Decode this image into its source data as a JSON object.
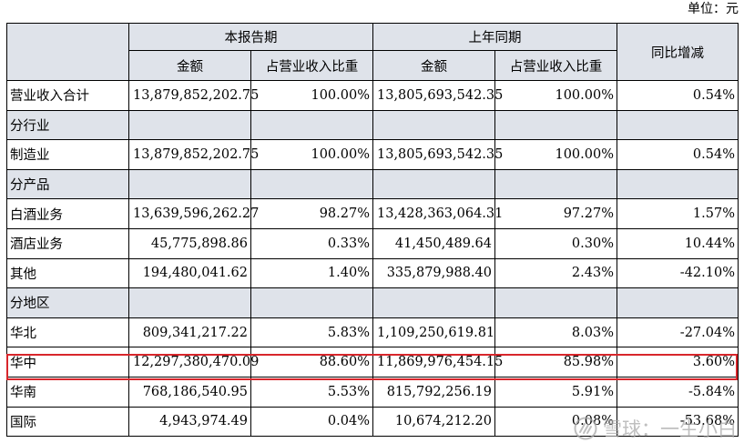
{
  "unit_label": "单位：元",
  "headers": {
    "item": "",
    "current_period": "本报告期",
    "prior_period": "上年同期",
    "yoy": "同比增减",
    "amount": "金额",
    "share": "占营业收入比重"
  },
  "total": {
    "label": "营业收入合计",
    "cur_amount": "13,879,852,202.75",
    "cur_share": "100.00%",
    "prev_amount": "13,805,693,542.35",
    "prev_share": "100.00%",
    "yoy": "0.54%"
  },
  "sections": [
    {
      "title": "分行业",
      "rows": [
        {
          "label": "制造业",
          "cur_amount": "13,879,852,202.75",
          "cur_share": "100.00%",
          "prev_amount": "13,805,693,542.35",
          "prev_share": "100.00%",
          "yoy": "0.54%"
        }
      ]
    },
    {
      "title": "分产品",
      "rows": [
        {
          "label": "白酒业务",
          "cur_amount": "13,639,596,262.27",
          "cur_share": "98.27%",
          "prev_amount": "13,428,363,064.31",
          "prev_share": "97.27%",
          "yoy": "1.57%"
        },
        {
          "label": "酒店业务",
          "cur_amount": "45,775,898.86",
          "cur_share": "0.33%",
          "prev_amount": "41,450,489.64",
          "prev_share": "0.30%",
          "yoy": "10.44%"
        },
        {
          "label": "其他",
          "cur_amount": "194,480,041.62",
          "cur_share": "1.40%",
          "prev_amount": "335,879,988.40",
          "prev_share": "2.43%",
          "yoy": "-42.10%"
        }
      ]
    },
    {
      "title": "分地区",
      "rows": [
        {
          "label": "华北",
          "cur_amount": "809,341,217.22",
          "cur_share": "5.83%",
          "prev_amount": "1,109,250,619.81",
          "prev_share": "8.03%",
          "yoy": "-27.04%"
        },
        {
          "label": "华中",
          "cur_amount": "12,297,380,470.09",
          "cur_share": "88.60%",
          "prev_amount": "11,869,976,454.15",
          "prev_share": "85.98%",
          "yoy": "3.60%"
        },
        {
          "label": "华南",
          "cur_amount": "768,186,540.95",
          "cur_share": "5.53%",
          "prev_amount": "815,792,256.19",
          "prev_share": "5.91%",
          "yoy": "-5.84%"
        },
        {
          "label": "国际",
          "cur_amount": "4,943,974.49",
          "cur_share": "0.04%",
          "prev_amount": "10,674,212.20",
          "prev_share": "0.08%",
          "yoy": "-53.68%"
        }
      ]
    }
  ],
  "watermark": {
    "text": "雪球：一生小白",
    "icon": "snowball-logo-icon"
  },
  "highlight_color": "#d8262b"
}
